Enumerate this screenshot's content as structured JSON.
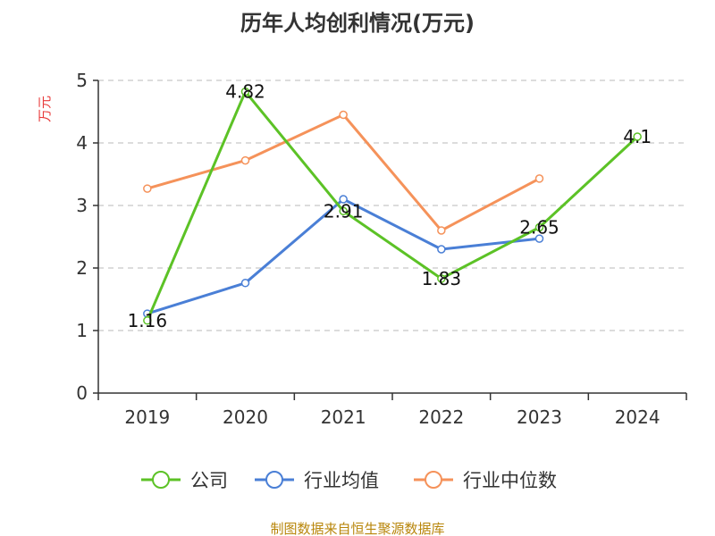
{
  "chart_data": {
    "type": "line",
    "title": "历年人均创利情况(万元)",
    "ylabel": "万元",
    "xlabel": "",
    "categories": [
      "2019",
      "2020",
      "2021",
      "2022",
      "2023",
      "2024"
    ],
    "ylim": [
      0,
      5
    ],
    "yticks": [
      0,
      1,
      2,
      3,
      4,
      5
    ],
    "grid": true,
    "legend_position": "bottom",
    "series": [
      {
        "name": "公司",
        "color": "#5cc226",
        "values": [
          1.16,
          4.82,
          2.91,
          1.83,
          2.65,
          4.1
        ],
        "labels": [
          "1.16",
          "4.82",
          "2.91",
          "1.83",
          "2.65",
          "4.1"
        ]
      },
      {
        "name": "行业均值",
        "color": "#4a7fd6",
        "values": [
          1.27,
          1.76,
          3.1,
          2.3,
          2.47,
          null
        ]
      },
      {
        "name": "行业中位数",
        "color": "#f5925a",
        "values": [
          3.27,
          3.72,
          4.45,
          2.6,
          3.43,
          null
        ]
      }
    ]
  },
  "source": "制图数据来自恒生聚源数据库"
}
